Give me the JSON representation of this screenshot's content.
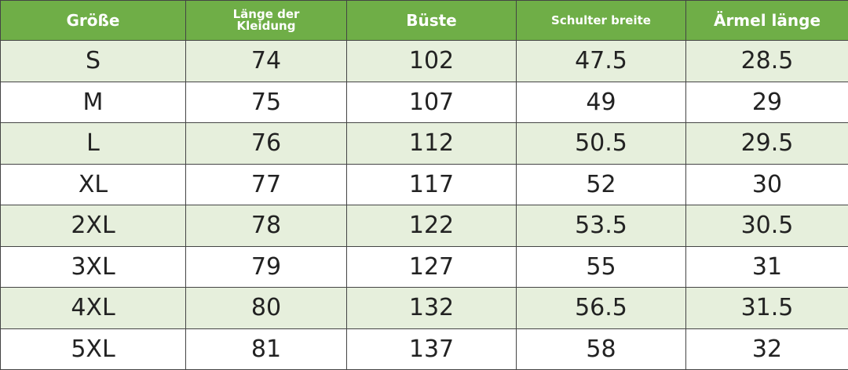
{
  "table": {
    "header": [
      "Größe",
      "Länge der Kleidung",
      "Büste",
      "Schulter breite",
      "Ärmel länge"
    ],
    "rows": [
      [
        "S",
        74,
        102,
        47.5,
        28.5
      ],
      [
        "M",
        75,
        107,
        49,
        29
      ],
      [
        "L",
        76,
        112,
        50.5,
        29.5
      ],
      [
        "XL",
        77,
        117,
        52,
        30
      ],
      [
        "2XL",
        78,
        122,
        53.5,
        30.5
      ],
      [
        "3XL",
        79,
        127,
        55,
        31
      ],
      [
        "4XL",
        80,
        132,
        56.5,
        31.5
      ],
      [
        "5XL",
        81,
        137,
        58,
        32
      ]
    ]
  }
}
